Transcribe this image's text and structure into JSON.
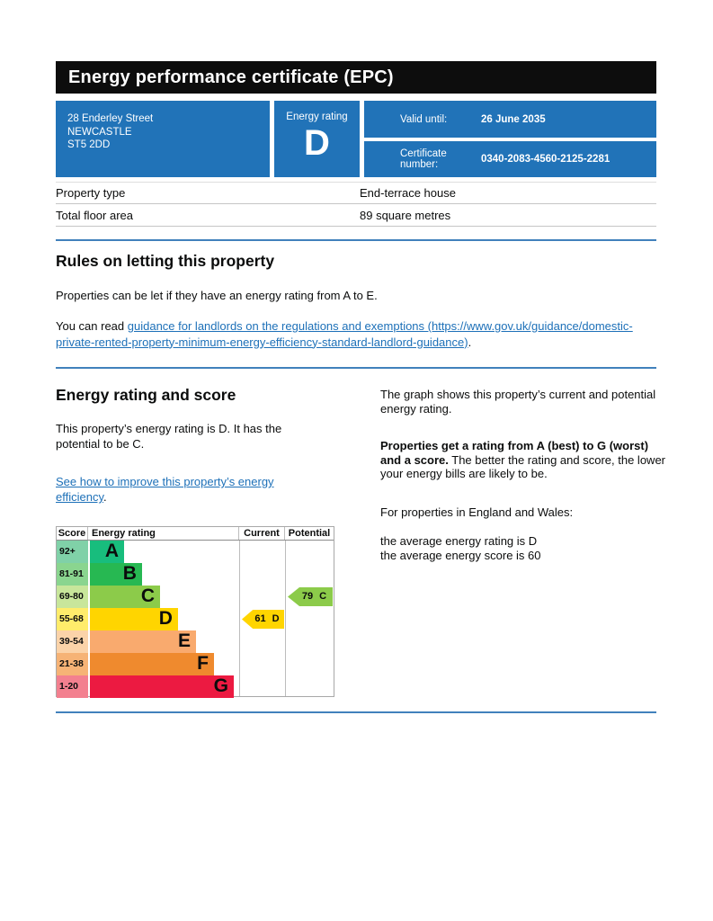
{
  "header": {
    "title": "Energy performance certificate (EPC)",
    "address_line1": "28 Enderley Street",
    "address_line2": "NEWCASTLE",
    "address_line3": "ST5 2DD",
    "energy_rating_label": "Energy rating",
    "energy_rating_value": "D",
    "valid_until_label": "Valid until:",
    "valid_until_value": "26 June 2035",
    "certificate_number_label": "Certificate number:",
    "certificate_number_value": "0340-2083-4560-2125-2281"
  },
  "property_summary": {
    "rows": [
      {
        "label": "Property type",
        "value": "End-terrace house"
      },
      {
        "label": "Total floor area",
        "value": "89 square metres"
      }
    ]
  },
  "rules_section": {
    "heading": "Rules on letting this property",
    "paragraph1": "Properties can be let if they have an energy rating from A to E.",
    "paragraph2_prefix": "You can read ",
    "link_text": "guidance for landlords on the regulations and exemptions (https://www.gov.uk/guidance/domestic-private-rented-property-minimum-energy-efficiency-standard-landlord-guidance)",
    "paragraph2_suffix": "."
  },
  "rating_section": {
    "heading": "Energy rating and score",
    "intro": "This property’s energy rating is D. It has the potential to be C.",
    "improve_link_text": "See how to improve this property’s energy efficiency",
    "improve_link_suffix": ".",
    "right": {
      "para1": "The graph shows this property’s current and potential energy rating.",
      "para2_bold": "Properties get a rating from A (best) to G (worst) and a score.",
      "para2_rest": " The better the rating and score, the lower your energy bills are likely to be.",
      "para3": "For properties in England and Wales:",
      "avg_rating_line": "the average energy rating is D",
      "avg_score_line": "the average energy score is 60"
    }
  },
  "chart_data": {
    "type": "epc-rating-bands",
    "columns": {
      "score": "Score",
      "rating": "Energy rating",
      "current": "Current",
      "potential": "Potential"
    },
    "bands": [
      {
        "score": "92+",
        "letter": "A",
        "color": "#18bd7d",
        "tint": "#80d1a8",
        "width_pct": 22.9
      },
      {
        "score": "81-91",
        "letter": "B",
        "color": "#27b852",
        "tint": "#8ad58f",
        "width_pct": 34.9
      },
      {
        "score": "69-80",
        "letter": "C",
        "color": "#8ccb4a",
        "tint": "#c8e69b",
        "width_pct": 47.0
      },
      {
        "score": "55-68",
        "letter": "D",
        "color": "#ffd500",
        "tint": "#ffec6b",
        "width_pct": 59.0
      },
      {
        "score": "39-54",
        "letter": "E",
        "color": "#f9aa6e",
        "tint": "#fbd3a9",
        "width_pct": 71.1
      },
      {
        "score": "21-38",
        "letter": "F",
        "color": "#ef8a2e",
        "tint": "#f6b376",
        "width_pct": 83.1
      },
      {
        "score": "1-20",
        "letter": "G",
        "color": "#ec1a41",
        "tint": "#f3808f",
        "width_pct": 96.4
      }
    ],
    "current": {
      "score": 61,
      "band": "D",
      "label": "61 D",
      "color": "#ffd500"
    },
    "potential": {
      "score": 79,
      "band": "C",
      "label": "79 C",
      "color": "#8ccb4a"
    }
  },
  "colors": {
    "accent_blue": "#2173b8",
    "divider_blue": "#4181bc",
    "link_blue": "#1d70b8"
  }
}
